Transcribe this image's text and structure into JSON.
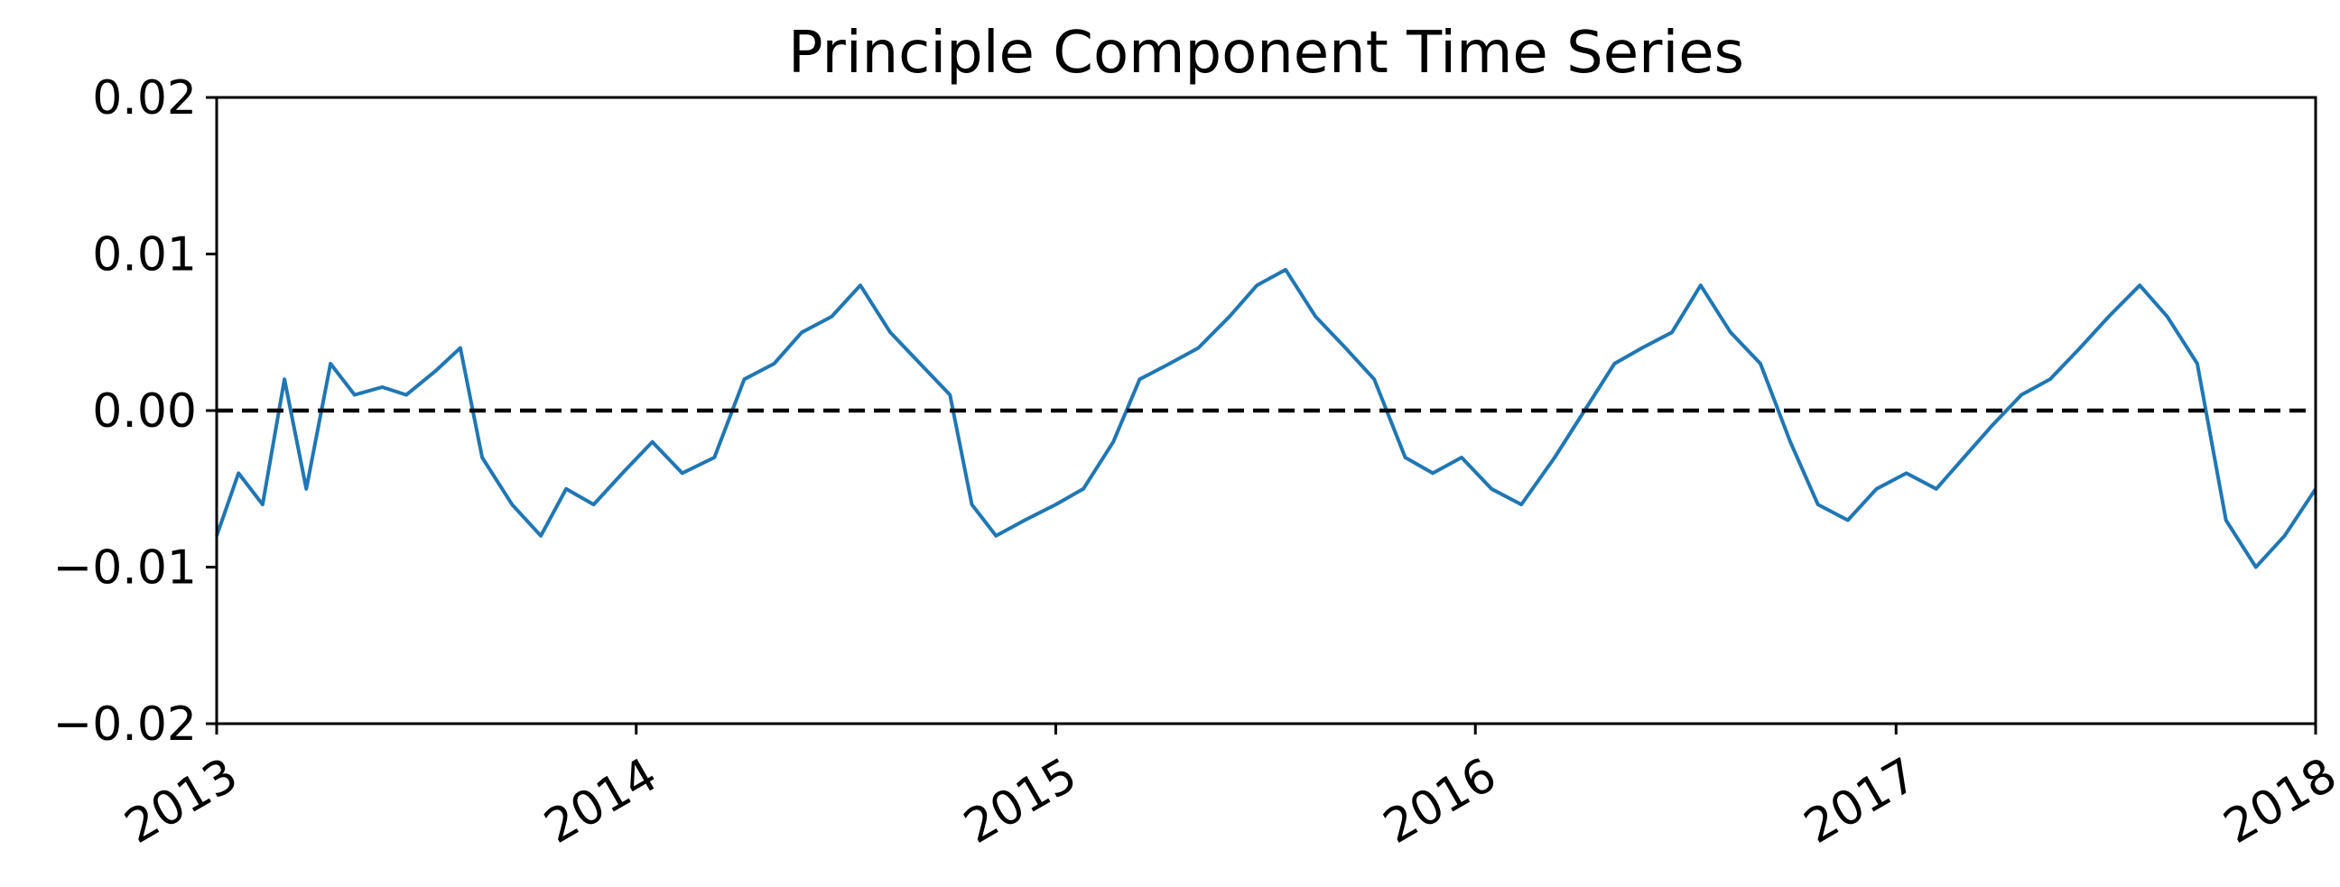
{
  "chart_data": {
    "type": "line",
    "title": "Principle Component Time Series",
    "xlabel": "",
    "ylabel": "",
    "x_range": [
      "2013-01-01",
      "2018-01-01"
    ],
    "ylim": [
      -0.02,
      0.02
    ],
    "x_ticks": [
      {
        "date": "2013-01-01",
        "label": "2013"
      },
      {
        "date": "2014-01-01",
        "label": "2014"
      },
      {
        "date": "2015-01-01",
        "label": "2015"
      },
      {
        "date": "2016-01-01",
        "label": "2016"
      },
      {
        "date": "2017-01-01",
        "label": "2017"
      },
      {
        "date": "2018-01-01",
        "label": "2018"
      }
    ],
    "y_ticks": [
      {
        "value": 0.02,
        "label": "0.02"
      },
      {
        "value": 0.01,
        "label": "0.01"
      },
      {
        "value": 0.0,
        "label": "0.00"
      },
      {
        "value": -0.01,
        "label": "−0.01"
      },
      {
        "value": -0.02,
        "label": "−0.02"
      }
    ],
    "grid": false,
    "legend": "none",
    "reference_line": {
      "y": 0.0,
      "style": "dashed",
      "color": "#000000"
    },
    "series": [
      {
        "color": "#1f77b4",
        "x": [
          "2013-01-01",
          "2013-01-20",
          "2013-02-10",
          "2013-03-01",
          "2013-03-20",
          "2013-04-10",
          "2013-05-01",
          "2013-05-25",
          "2013-06-15",
          "2013-07-10",
          "2013-08-01",
          "2013-08-20",
          "2013-09-15",
          "2013-10-10",
          "2013-11-01",
          "2013-11-25",
          "2013-12-20",
          "2014-01-15",
          "2014-02-10",
          "2014-03-10",
          "2014-04-05",
          "2014-05-01",
          "2014-05-25",
          "2014-06-20",
          "2014-07-15",
          "2014-08-10",
          "2014-09-05",
          "2014-10-01",
          "2014-10-20",
          "2014-11-10",
          "2014-12-05",
          "2015-01-01",
          "2015-01-25",
          "2015-02-20",
          "2015-03-15",
          "2015-04-10",
          "2015-05-05",
          "2015-06-01",
          "2015-06-25",
          "2015-07-20",
          "2015-08-15",
          "2015-09-10",
          "2015-10-05",
          "2015-11-01",
          "2015-11-25",
          "2015-12-20",
          "2016-01-15",
          "2016-02-10",
          "2016-03-10",
          "2016-04-05",
          "2016-05-01",
          "2016-05-25",
          "2016-06-20",
          "2016-07-15",
          "2016-08-10",
          "2016-09-05",
          "2016-10-01",
          "2016-10-25",
          "2016-11-20",
          "2016-12-15",
          "2017-01-10",
          "2017-02-05",
          "2017-03-01",
          "2017-03-25",
          "2017-04-20",
          "2017-05-15",
          "2017-06-10",
          "2017-07-05",
          "2017-08-01",
          "2017-08-25",
          "2017-09-20",
          "2017-10-15",
          "2017-11-10",
          "2017-12-05",
          "2018-01-01"
        ],
        "y": [
          -0.008,
          -0.004,
          -0.006,
          0.002,
          -0.005,
          0.003,
          0.001,
          0.0015,
          0.001,
          0.0025,
          0.004,
          -0.003,
          -0.006,
          -0.008,
          -0.005,
          -0.006,
          -0.004,
          -0.002,
          -0.004,
          -0.003,
          0.002,
          0.003,
          0.005,
          0.006,
          0.008,
          0.005,
          0.003,
          0.001,
          -0.006,
          -0.008,
          -0.007,
          -0.006,
          -0.005,
          -0.002,
          0.002,
          0.003,
          0.004,
          0.006,
          0.008,
          0.009,
          0.006,
          0.004,
          0.002,
          -0.003,
          -0.004,
          -0.003,
          -0.005,
          -0.006,
          -0.003,
          0.0,
          0.003,
          0.004,
          0.005,
          0.008,
          0.005,
          0.003,
          -0.002,
          -0.006,
          -0.007,
          -0.005,
          -0.004,
          -0.005,
          -0.003,
          -0.001,
          0.001,
          0.002,
          0.004,
          0.006,
          0.008,
          0.006,
          0.003,
          -0.007,
          -0.01,
          -0.008,
          -0.005
        ]
      }
    ]
  }
}
